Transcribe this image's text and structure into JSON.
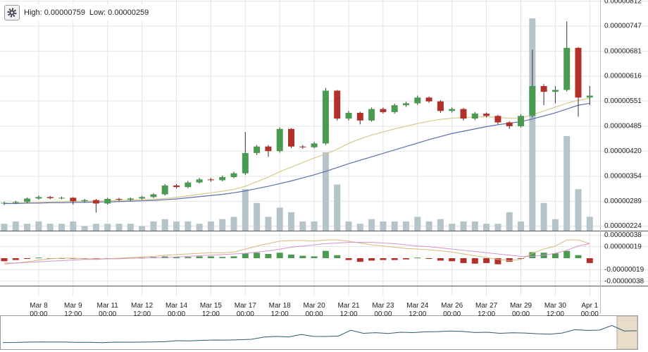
{
  "chart_data": {
    "type": "candlestick",
    "annotations": [
      "High: 0.00000759",
      "Low: 0.00000259"
    ],
    "categories": [
      null,
      null,
      null,
      "Mar 8\n00:00",
      null,
      null,
      "Mar 9\n12:00",
      null,
      null,
      "Mar 11\n00:00",
      null,
      null,
      "Mar 12\n12:00",
      null,
      null,
      "Mar 14\n00:00",
      null,
      null,
      "Mar 15\n12:00",
      null,
      null,
      "Mar 17\n00:00",
      null,
      null,
      "Mar 18\n12:00",
      null,
      null,
      "Mar 20\n00:00",
      null,
      null,
      "Mar 21\n12:00",
      null,
      null,
      "Mar 23\n00:00",
      null,
      null,
      "Mar 24\n12:00",
      null,
      null,
      "Mar 26\n00:00",
      null,
      null,
      "Mar 27\n12:00",
      null,
      null,
      "Mar 29\n00:00",
      null,
      null,
      "Mar 30\n12:00",
      null,
      null,
      "Apr 1\n00:00"
    ],
    "open": [
      2.83e-06,
      2.85e-06,
      2.87e-06,
      2.96e-06,
      3e-06,
      2.97e-06,
      2.98e-06,
      2.89e-06,
      2.92e-06,
      2.83e-06,
      2.95e-06,
      2.93e-06,
      2.96e-06,
      3e-06,
      3.07e-06,
      3.3e-06,
      3.26e-06,
      3.38e-06,
      3.46e-06,
      3.44e-06,
      3.52e-06,
      3.62e-06,
      4.15e-06,
      4.32e-06,
      4.2e-06,
      4.78e-06,
      4.32e-06,
      4.3e-06,
      4.4e-06,
      5.78e-06,
      5.05e-06,
      5.2e-06,
      5e-06,
      5.3e-06,
      5.22e-06,
      5.4e-06,
      5.45e-06,
      5.6e-06,
      5.5e-06,
      5.25e-06,
      5.3e-06,
      5.05e-06,
      5.18e-06,
      5.12e-06,
      4.95e-06,
      4.85e-06,
      5.12e-06,
      5.9e-06,
      5.75e-06,
      5.8e-06,
      6.9e-06,
      5.6e-06
    ],
    "high": [
      2.88e-06,
      2.9e-06,
      2.99e-06,
      3.04e-06,
      3.03e-06,
      3.01e-06,
      3e-06,
      2.95e-06,
      2.95e-06,
      2.98e-06,
      2.98e-06,
      2.99e-06,
      3.03e-06,
      3.1e-06,
      3.34e-06,
      3.34e-06,
      3.42e-06,
      3.5e-06,
      3.5e-06,
      3.56e-06,
      3.66e-06,
      4.7e-06,
      4.36e-06,
      4.36e-06,
      4.82e-06,
      4.8e-06,
      4.36e-06,
      4.44e-06,
      5.85e-06,
      5.8e-06,
      5.25e-06,
      5.23e-06,
      5.34e-06,
      5.34e-06,
      5.44e-06,
      5.49e-06,
      5.65e-06,
      5.63e-06,
      5.53e-06,
      5.34e-06,
      5.33e-06,
      5.22e-06,
      5.21e-06,
      5.15e-06,
      4.98e-06,
      5.16e-06,
      6.85e-06,
      5.95e-06,
      5.9e-06,
      7.59e-06,
      6.92e-06,
      5.9e-06
    ],
    "low": [
      2.79e-06,
      2.82e-06,
      2.84e-06,
      2.93e-06,
      2.94e-06,
      2.94e-06,
      2.8e-06,
      2.86e-06,
      2.59e-06,
      2.8e-06,
      2.9e-06,
      2.9e-06,
      2.93e-06,
      2.97e-06,
      3.04e-06,
      3.22e-06,
      3.23e-06,
      3.35e-06,
      3.4e-06,
      3.41e-06,
      3.49e-06,
      3.58e-06,
      4.1e-06,
      4.05e-06,
      4.16e-06,
      4.28e-06,
      4.26e-06,
      4.27e-06,
      4.36e-06,
      5e-06,
      5e-06,
      4.9e-06,
      4.97e-06,
      5.18e-06,
      5.18e-06,
      5.36e-06,
      5.41e-06,
      5.46e-06,
      5.2e-06,
      5.21e-06,
      5e-06,
      5.01e-06,
      5.08e-06,
      4.9e-06,
      4.78e-06,
      4.82e-06,
      5.08e-06,
      5.4e-06,
      5.45e-06,
      5.76e-06,
      5.1e-06,
      5.4e-06
    ],
    "close": [
      2.85e-06,
      2.87e-06,
      2.96e-06,
      3e-06,
      2.97e-06,
      2.98e-06,
      2.89e-06,
      2.92e-06,
      2.83e-06,
      2.95e-06,
      2.93e-06,
      2.96e-06,
      3e-06,
      3.07e-06,
      3.3e-06,
      3.26e-06,
      3.38e-06,
      3.46e-06,
      3.44e-06,
      3.52e-06,
      3.62e-06,
      4.15e-06,
      4.32e-06,
      4.2e-06,
      4.78e-06,
      4.32e-06,
      4.3e-06,
      4.4e-06,
      5.78e-06,
      5.05e-06,
      5.2e-06,
      5e-06,
      5.3e-06,
      5.22e-06,
      5.4e-06,
      5.45e-06,
      5.6e-06,
      5.5e-06,
      5.25e-06,
      5.3e-06,
      5.05e-06,
      5.18e-06,
      5.12e-06,
      4.95e-06,
      4.85e-06,
      5.12e-06,
      5.9e-06,
      5.75e-06,
      5.8e-06,
      6.9e-06,
      5.6e-06,
      5.65e-06
    ],
    "up_color": "#4a9a52",
    "down_color": "#b3302a",
    "ylim": [
      2.12e-06,
      8.15e-06
    ],
    "yticks": [
      {
        "value": 2.24e-06,
        "label": "0.00000224"
      },
      {
        "value": 2.89e-06,
        "label": "0.00000289"
      },
      {
        "value": 3.54e-06,
        "label": "0.00000354"
      },
      {
        "value": 4.2e-06,
        "label": "0.00000420"
      },
      {
        "value": 4.85e-06,
        "label": "0.00000485"
      },
      {
        "value": 5.51e-06,
        "label": "0.00000551"
      },
      {
        "value": 6.16e-06,
        "label": "0.00000616"
      },
      {
        "value": 6.81e-06,
        "label": "0.00000681"
      },
      {
        "value": 7.47e-06,
        "label": "0.00000747"
      },
      {
        "value": 8.12e-06,
        "label": "0.00000812"
      }
    ],
    "grid": true,
    "ma": [
      {
        "color": "#d8c98c",
        "values": [
          2.83e-06,
          2.84e-06,
          2.85e-06,
          2.86e-06,
          2.87e-06,
          2.88e-06,
          2.89e-06,
          2.89e-06,
          2.9e-06,
          2.9e-06,
          2.91e-06,
          2.92e-06,
          2.93e-06,
          2.94e-06,
          2.96e-06,
          2.99e-06,
          3.03e-06,
          3.07e-06,
          3.11e-06,
          3.15e-06,
          3.2e-06,
          3.28e-06,
          3.4e-06,
          3.52e-06,
          3.66e-06,
          3.78e-06,
          3.9e-06,
          4.02e-06,
          4.12e-06,
          4.25e-06,
          4.4e-06,
          4.52e-06,
          4.62e-06,
          4.7e-06,
          4.78e-06,
          4.85e-06,
          4.92e-06,
          4.98e-06,
          5.03e-06,
          5.06e-06,
          5.08e-06,
          5.09e-06,
          5.1e-06,
          5.08e-06,
          5.06e-06,
          5.06e-06,
          5.15e-06,
          5.25e-06,
          5.35e-06,
          5.45e-06,
          5.53e-06,
          5.58e-06
        ]
      },
      {
        "color": "#5b6eae",
        "values": [
          2.83e-06,
          2.83e-06,
          2.84e-06,
          2.84e-06,
          2.85e-06,
          2.85e-06,
          2.86e-06,
          2.86e-06,
          2.87e-06,
          2.87e-06,
          2.88e-06,
          2.89e-06,
          2.9e-06,
          2.91e-06,
          2.93e-06,
          2.95e-06,
          2.98e-06,
          3.01e-06,
          3.04e-06,
          3.07e-06,
          3.11e-06,
          3.16e-06,
          3.22e-06,
          3.28e-06,
          3.35e-06,
          3.42e-06,
          3.5e-06,
          3.58e-06,
          3.67e-06,
          3.77e-06,
          3.87e-06,
          3.96e-06,
          4.05e-06,
          4.14e-06,
          4.23e-06,
          4.32e-06,
          4.41e-06,
          4.5e-06,
          4.58e-06,
          4.66e-06,
          4.72e-06,
          4.78e-06,
          4.84e-06,
          4.89e-06,
          4.93e-06,
          4.97e-06,
          5.04e-06,
          5.12e-06,
          5.2e-06,
          5.3e-06,
          5.4e-06,
          5.45e-06
        ]
      }
    ],
    "volume": {
      "color": "#b5c4c9",
      "ylim": [
        0,
        100
      ],
      "values": [
        3,
        4,
        3,
        4,
        3,
        3,
        4,
        2,
        3,
        3,
        3,
        3,
        2,
        4,
        5,
        4,
        4,
        3,
        4,
        5,
        6,
        18,
        12,
        6,
        10,
        8,
        4,
        4,
        34,
        20,
        4,
        3,
        5,
        4,
        4,
        4,
        6,
        4,
        5,
        3,
        4,
        4,
        3,
        3,
        8,
        4,
        92,
        12,
        5,
        41,
        18,
        6
      ]
    },
    "macd": {
      "ylim": [
        -4.3e-07,
        4.3e-07
      ],
      "yticks": [
        {
          "value": 3.8e-07,
          "label": "0.00000038"
        },
        {
          "value": 1.9e-07,
          "label": "0.00000019"
        },
        {
          "value": -1.9e-07,
          "label": "-0.00000019"
        },
        {
          "value": -3.8e-07,
          "label": "-0.00000038"
        }
      ],
      "histogram": [
        -5e-08,
        -3e-08,
        -1e-08,
        1e-08,
        0,
        0,
        -1e-08,
        0,
        -1e-08,
        0,
        0,
        1e-08,
        1e-08,
        2e-08,
        3e-08,
        2e-08,
        2e-08,
        3e-08,
        3e-08,
        2e-08,
        3e-08,
        8e-08,
        9e-08,
        7e-08,
        9e-08,
        6e-08,
        4e-08,
        3e-08,
        1.2e-07,
        5e-08,
        -3e-08,
        -6e-08,
        -4e-08,
        -3e-08,
        -3e-08,
        -2e-08,
        1e-08,
        -1e-08,
        -4e-08,
        -5e-08,
        -8e-08,
        -9e-08,
        -8e-08,
        -1e-07,
        -6e-08,
        -1e-08,
        1e-07,
        9e-08,
        8e-08,
        1.2e-07,
        5e-08,
        -8e-08
      ],
      "lines": [
        {
          "color": "#d9b87a",
          "values": [
            -1e-07,
            -8e-08,
            -6e-08,
            -3e-08,
            -1e-08,
            0,
            0,
            -1e-08,
            -1e-08,
            -1e-08,
            0,
            1e-08,
            2e-08,
            3e-08,
            5e-08,
            6e-08,
            7e-08,
            8e-08,
            9e-08,
            9e-08,
            1e-07,
            1.5e-07,
            2e-07,
            2.4e-07,
            2.8e-07,
            2.9e-07,
            2.9e-07,
            2.8e-07,
            3e-07,
            3e-07,
            2.8e-07,
            2.5e-07,
            2.2e-07,
            2e-07,
            1.8e-07,
            1.6e-07,
            1.5e-07,
            1.4e-07,
            1.2e-07,
            1e-07,
            7e-08,
            4e-08,
            1e-08,
            -2e-08,
            -4e-08,
            -2e-08,
            8e-08,
            1.5e-07,
            2e-07,
            3e-07,
            3e-07,
            2.4e-07
          ]
        },
        {
          "color": "#d692c8",
          "values": [
            -8e-08,
            -8e-08,
            -7e-08,
            -6e-08,
            -5e-08,
            -4e-08,
            -3e-08,
            -2e-08,
            -2e-08,
            -1e-08,
            -1e-08,
            0,
            0,
            1e-08,
            1e-08,
            2e-08,
            3e-08,
            4e-08,
            5e-08,
            6e-08,
            7e-08,
            8e-08,
            1e-07,
            1.2e-07,
            1.5e-07,
            1.8e-07,
            2e-07,
            2.2e-07,
            2.4e-07,
            2.5e-07,
            2.6e-07,
            2.6e-07,
            2.6e-07,
            2.5e-07,
            2.4e-07,
            2.2e-07,
            2e-07,
            1.9e-07,
            1.7e-07,
            1.5e-07,
            1.3e-07,
            1.1e-07,
            9e-08,
            7e-08,
            5e-08,
            3e-08,
            3e-08,
            5e-08,
            8e-08,
            1.3e-07,
            2e-07,
            2.4e-07
          ]
        }
      ]
    }
  }
}
